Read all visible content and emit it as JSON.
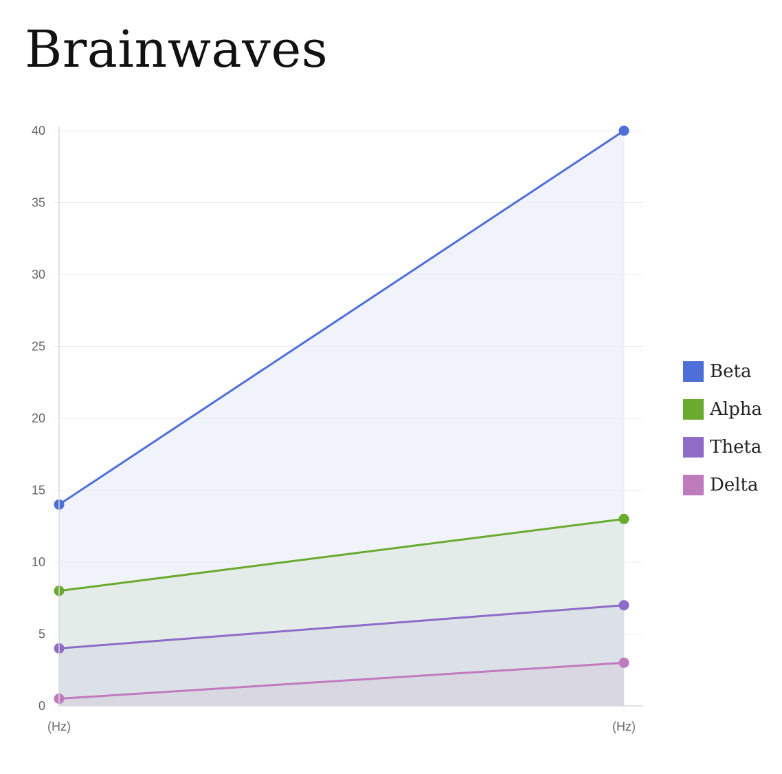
{
  "title": "Brainwaves",
  "chart_data": {
    "type": "area",
    "categories": [
      "(Hz)",
      "(Hz)"
    ],
    "ylim": [
      0,
      40
    ],
    "yticks": [
      0,
      5,
      10,
      15,
      20,
      25,
      30,
      35,
      40
    ],
    "grid": true,
    "legend_position": "right",
    "series": [
      {
        "name": "Beta",
        "values": [
          14,
          40
        ],
        "color": "#4f6fd8",
        "fill": "#eceff8"
      },
      {
        "name": "Alpha",
        "values": [
          8,
          13
        ],
        "color": "#6aaa2f",
        "fill": "#dfe9e4"
      },
      {
        "name": "Theta",
        "values": [
          4,
          7
        ],
        "color": "#8e6cc7",
        "fill": "#d8dde6"
      },
      {
        "name": "Delta",
        "values": [
          0.5,
          3
        ],
        "color": "#c07bbf",
        "fill": "#d8d3e0"
      }
    ]
  }
}
